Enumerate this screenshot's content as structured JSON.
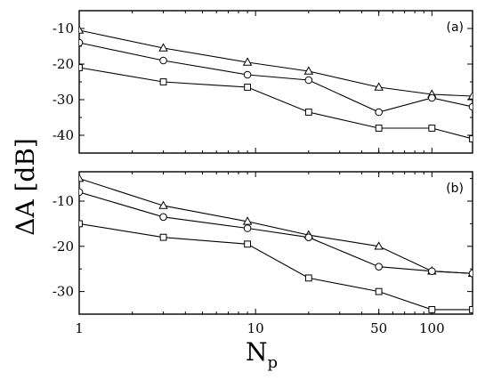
{
  "figure": {
    "ylabel": "ΔA [dB]",
    "xlabel_main": "N",
    "xlabel_sub": "p"
  },
  "chart_data": [
    {
      "type": "line",
      "panel_label": "(a)",
      "xscale": "log",
      "xlim": [
        1,
        170
      ],
      "ylim": [
        -45,
        -5
      ],
      "yticks": [
        -10,
        -20,
        -30,
        -40
      ],
      "ytick_labels": [
        "-10",
        "-20",
        "-30",
        "-40"
      ],
      "xticks": [
        1,
        10,
        50,
        100
      ],
      "xtick_labels": [],
      "grid": false,
      "legend": "none",
      "series": [
        {
          "marker": "triangle",
          "x": [
            1,
            3,
            9,
            20,
            50,
            100,
            170
          ],
          "y": [
            -10.5,
            -15.5,
            -19.5,
            -22,
            -26.5,
            -28.5,
            -29
          ]
        },
        {
          "marker": "circle",
          "x": [
            1,
            3,
            9,
            20,
            50,
            100,
            170
          ],
          "y": [
            -14,
            -19,
            -23,
            -24.5,
            -33.5,
            -29.5,
            -32
          ]
        },
        {
          "marker": "square",
          "x": [
            1,
            3,
            9,
            20,
            50,
            100,
            170
          ],
          "y": [
            -21,
            -25,
            -26.5,
            -33.5,
            -38,
            -38,
            -41
          ]
        }
      ]
    },
    {
      "type": "line",
      "panel_label": "(b)",
      "xscale": "log",
      "xlim": [
        1,
        170
      ],
      "ylim": [
        -35,
        -3.5
      ],
      "yticks": [
        -10,
        -20,
        -30
      ],
      "ytick_labels": [
        "-10",
        "-20",
        "-30"
      ],
      "xticks": [
        1,
        10,
        50,
        100
      ],
      "xtick_labels": [
        "1",
        "10",
        "50",
        "100"
      ],
      "grid": false,
      "legend": "none",
      "series": [
        {
          "marker": "triangle",
          "x": [
            1,
            3,
            9,
            20,
            50,
            100,
            170
          ],
          "y": [
            -5,
            -11,
            -14.5,
            -17.5,
            -20,
            -25.5,
            -26
          ]
        },
        {
          "marker": "circle",
          "x": [
            1,
            3,
            9,
            20,
            50,
            100,
            170
          ],
          "y": [
            -8,
            -13.5,
            -16,
            -18,
            -24.5,
            -25.5,
            -26
          ]
        },
        {
          "marker": "square",
          "x": [
            1,
            3,
            9,
            20,
            50,
            100,
            170
          ],
          "y": [
            -15,
            -18,
            -19.5,
            -27,
            -30,
            -34,
            -34
          ]
        }
      ]
    }
  ]
}
